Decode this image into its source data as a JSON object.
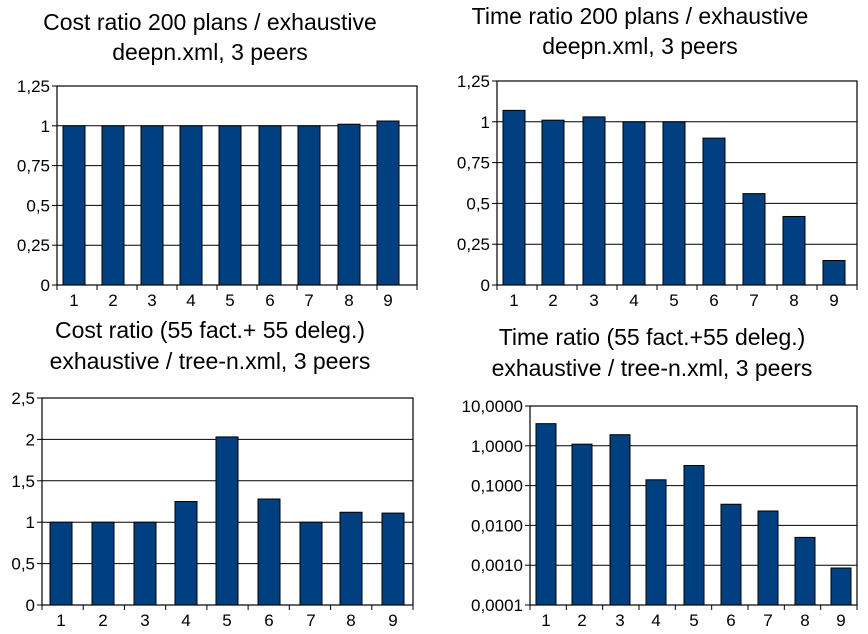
{
  "chart_data": [
    {
      "type": "bar",
      "title": "Cost ratio 200 plans / exhaustive",
      "subtitle": "deepn.xml, 3 peers",
      "categories": [
        "1",
        "2",
        "3",
        "4",
        "5",
        "6",
        "7",
        "8",
        "9"
      ],
      "values": [
        1.0,
        1.0,
        1.0,
        1.0,
        1.0,
        1.0,
        1.0,
        1.01,
        1.03
      ],
      "ylim": [
        0,
        1.25
      ],
      "yticks": [
        0,
        0.25,
        0.5,
        0.75,
        1,
        1.25
      ],
      "ytick_labels": [
        "0",
        "0,25",
        "0,5",
        "0,75",
        "1",
        "1,25"
      ],
      "yscale": "linear",
      "grid": true,
      "bar_color": "#003f80"
    },
    {
      "type": "bar",
      "title": "Time ratio 200 plans / exhaustive",
      "subtitle": "deepn.xml, 3 peers",
      "categories": [
        "1",
        "2",
        "3",
        "4",
        "5",
        "6",
        "7",
        "8",
        "9"
      ],
      "values": [
        1.07,
        1.01,
        1.03,
        1.0,
        1.0,
        0.9,
        0.56,
        0.42,
        0.15
      ],
      "ylim": [
        0,
        1.25
      ],
      "yticks": [
        0,
        0.25,
        0.5,
        0.75,
        1,
        1.25
      ],
      "ytick_labels": [
        "0",
        "0,25",
        "0,5",
        "0,75",
        "1",
        "1,25"
      ],
      "yscale": "linear",
      "grid": true,
      "bar_color": "#003f80"
    },
    {
      "type": "bar",
      "title": "Cost ratio (55 fact.+ 55 deleg.)",
      "subtitle": "exhaustive / tree-n.xml, 3 peers",
      "categories": [
        "1",
        "2",
        "3",
        "4",
        "5",
        "6",
        "7",
        "8",
        "9"
      ],
      "values": [
        1.0,
        1.0,
        1.0,
        1.25,
        2.03,
        1.28,
        1.0,
        1.12,
        1.11
      ],
      "ylim": [
        0,
        2.5
      ],
      "yticks": [
        0,
        0.5,
        1,
        1.5,
        2,
        2.5
      ],
      "ytick_labels": [
        "0",
        "0,5",
        "1",
        "1,5",
        "2",
        "2,5"
      ],
      "yscale": "linear",
      "grid": true,
      "bar_color": "#003f80"
    },
    {
      "type": "bar",
      "title": "Time ratio (55 fact.+55 deleg.)",
      "subtitle": "exhaustive / tree-n.xml, 3 peers",
      "categories": [
        "1",
        "2",
        "3",
        "4",
        "5",
        "6",
        "7",
        "8",
        "9"
      ],
      "values": [
        3.6,
        1.1,
        1.9,
        0.14,
        0.32,
        0.034,
        0.023,
        0.005,
        0.00085
      ],
      "ylim": [
        0.0001,
        10
      ],
      "yticks": [
        0.0001,
        0.001,
        0.01,
        0.1,
        1,
        10
      ],
      "ytick_labels": [
        "0,0001",
        "0,0010",
        "0,0100",
        "0,1000",
        "1,0000",
        "10,0000"
      ],
      "yscale": "log",
      "grid": true,
      "bar_color": "#003f80"
    }
  ]
}
